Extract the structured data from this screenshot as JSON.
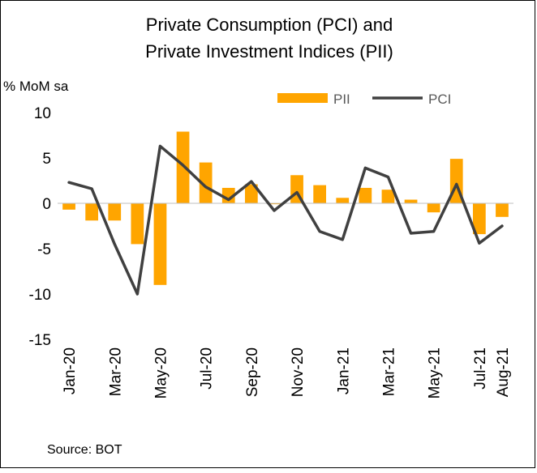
{
  "chart_data": {
    "type": "bar+line",
    "title": [
      "Private Consumption (PCI) and",
      "Private Investment Indices (PII)"
    ],
    "ylabel": "% MoM sa",
    "ylim": [
      -15,
      10
    ],
    "yticks": [
      10,
      5,
      0,
      -5,
      -10,
      -15
    ],
    "grid": false,
    "legend_position": "top-right",
    "categories": [
      "Jan-20",
      "Feb-20",
      "Mar-20",
      "Apr-20",
      "May-20",
      "Jun-20",
      "Jul-20",
      "Aug-20",
      "Sep-20",
      "Oct-20",
      "Nov-20",
      "Dec-20",
      "Jan-21",
      "Feb-21",
      "Mar-21",
      "Apr-21",
      "May-21",
      "Jun-21",
      "Jul-21",
      "Aug-21"
    ],
    "xtick_labels": [
      "Jan-20",
      "Mar-20",
      "May-20",
      "Jul-20",
      "Sep-20",
      "Nov-20",
      "Jan-21",
      "Mar-21",
      "May-21",
      "Jul-21",
      "Aug-21"
    ],
    "series": [
      {
        "name": "PII",
        "kind": "bar",
        "color": "#FFA500",
        "values": [
          -0.7,
          -1.9,
          -1.9,
          -4.5,
          -9.0,
          7.9,
          4.5,
          1.7,
          2.1,
          -0.1,
          3.1,
          2.0,
          0.6,
          1.7,
          1.5,
          0.4,
          -1.0,
          4.9,
          -3.4,
          -1.5
        ]
      },
      {
        "name": "PCI",
        "kind": "line",
        "color": "#404040",
        "values": [
          2.3,
          1.6,
          -4.5,
          -10.0,
          6.3,
          4.2,
          1.8,
          0.4,
          2.4,
          -0.8,
          1.2,
          -3.1,
          -4.0,
          3.9,
          2.9,
          -3.3,
          -3.1,
          2.1,
          -4.4,
          -2.5
        ]
      }
    ],
    "source": "Source:  BOT"
  }
}
